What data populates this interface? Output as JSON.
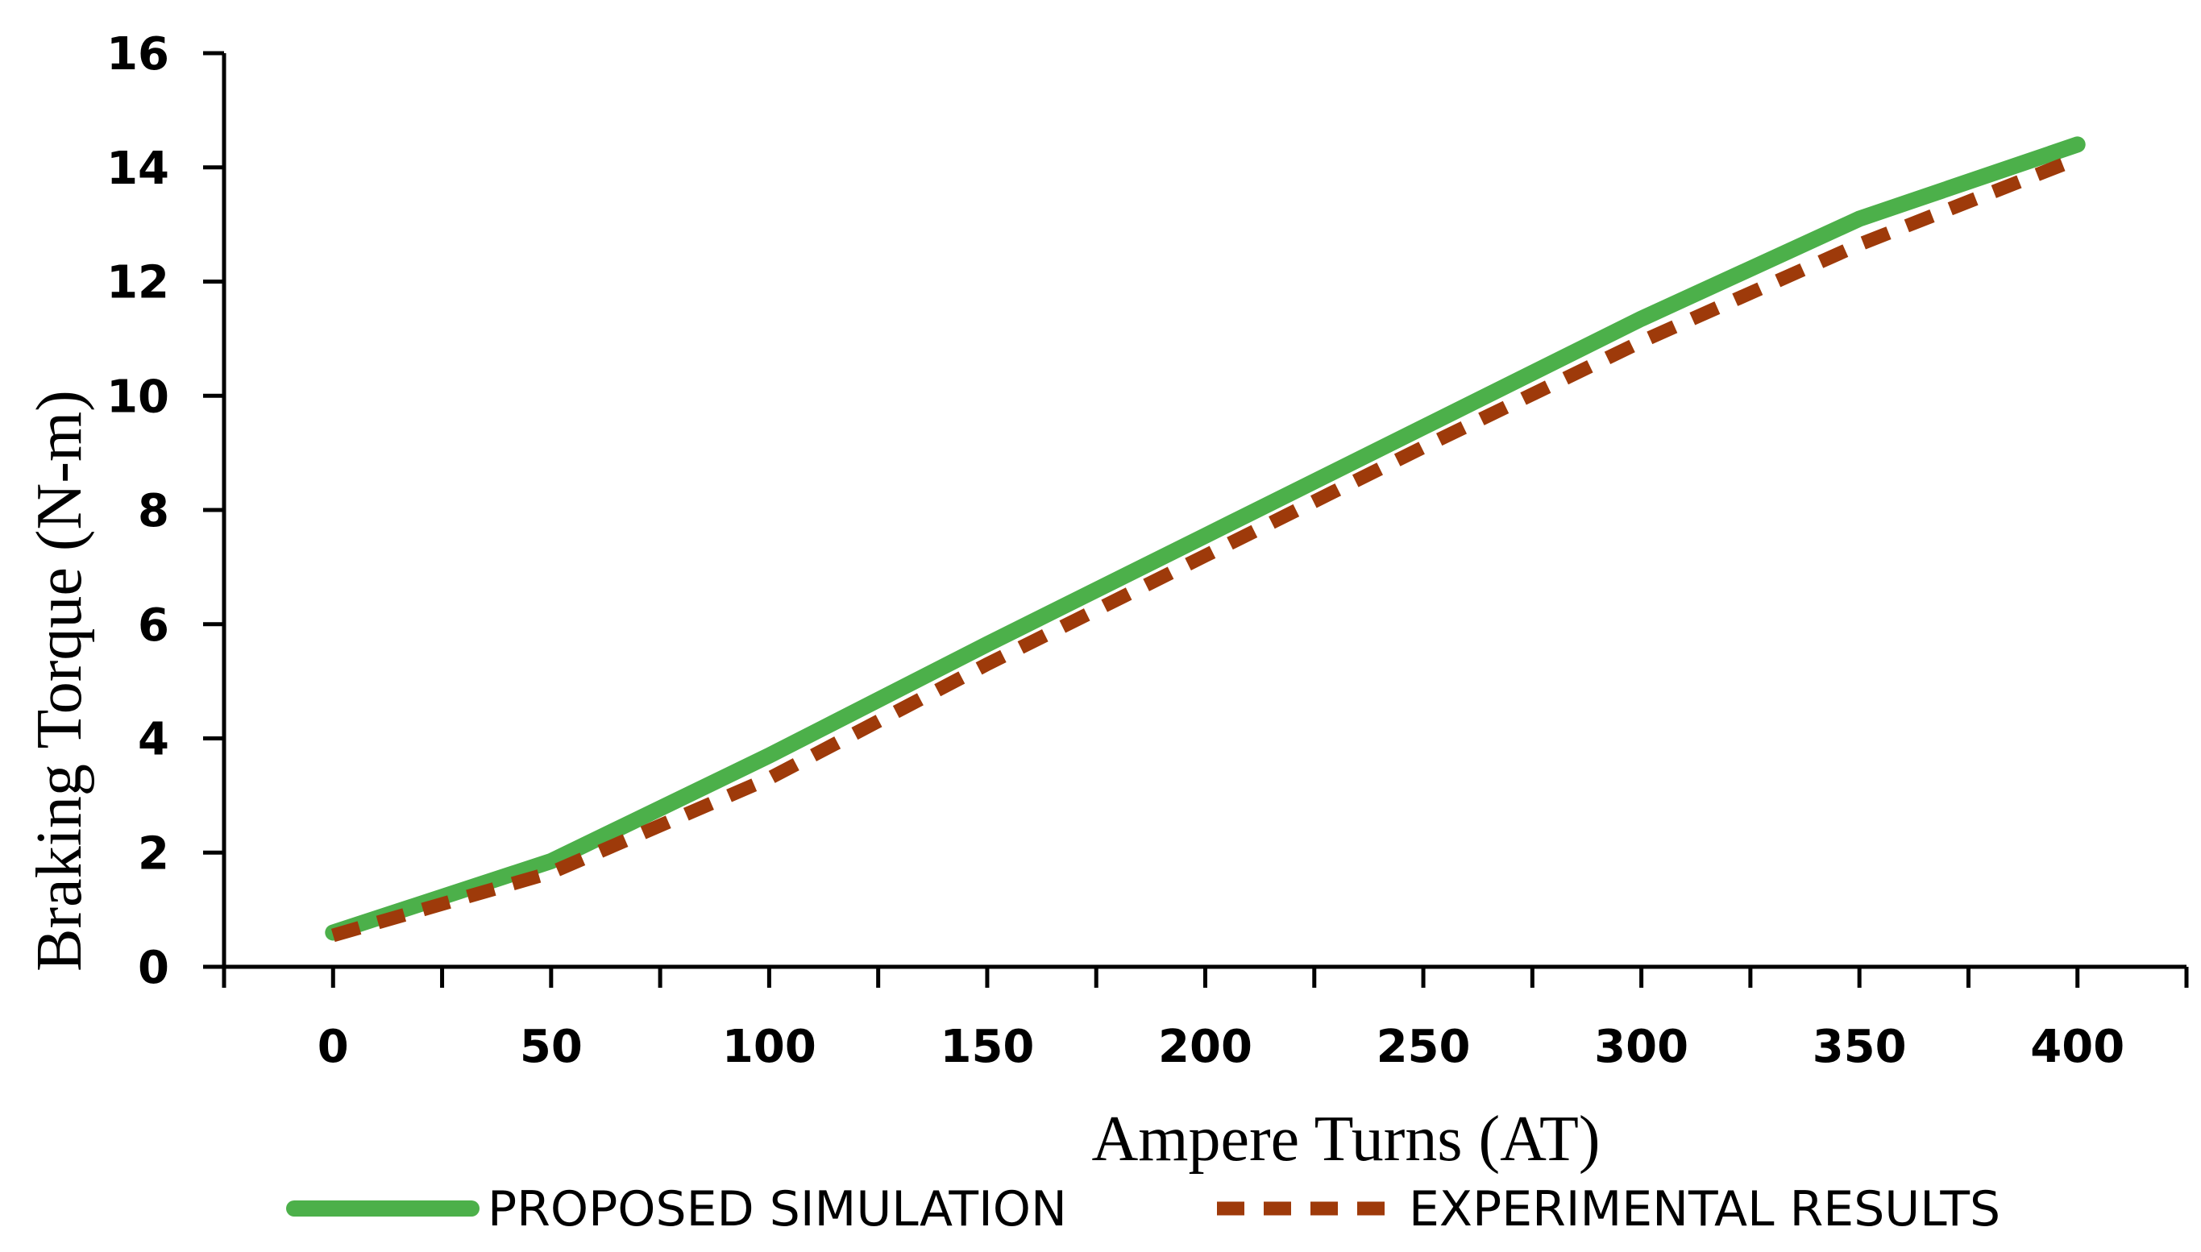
{
  "chart_data": {
    "type": "line",
    "xlabel": "Ampere Turns (AT)",
    "ylabel": "Braking Torque (N-m)",
    "x": [
      0,
      50,
      100,
      150,
      200,
      250,
      300,
      350,
      400
    ],
    "xlim": [
      -25,
      425
    ],
    "ylim": [
      0,
      16
    ],
    "xticks": [
      0,
      50,
      100,
      150,
      200,
      250,
      300,
      350,
      400
    ],
    "yticks": [
      0,
      2,
      4,
      6,
      8,
      10,
      12,
      14,
      16
    ],
    "grid": false,
    "legend_position": "bottom",
    "series": [
      {
        "name": "PROPOSED SIMULATION",
        "values": [
          0.6,
          1.85,
          3.7,
          5.65,
          7.55,
          9.45,
          11.35,
          13.1,
          14.4
        ],
        "color": "#4cb04a",
        "style": "solid"
      },
      {
        "name": "EXPERIMENTAL RESULTS",
        "values": [
          0.55,
          1.65,
          3.3,
          5.3,
          7.2,
          9.1,
          10.95,
          12.65,
          14.15
        ],
        "color": "#9e3a0a",
        "style": "dashed"
      }
    ]
  }
}
